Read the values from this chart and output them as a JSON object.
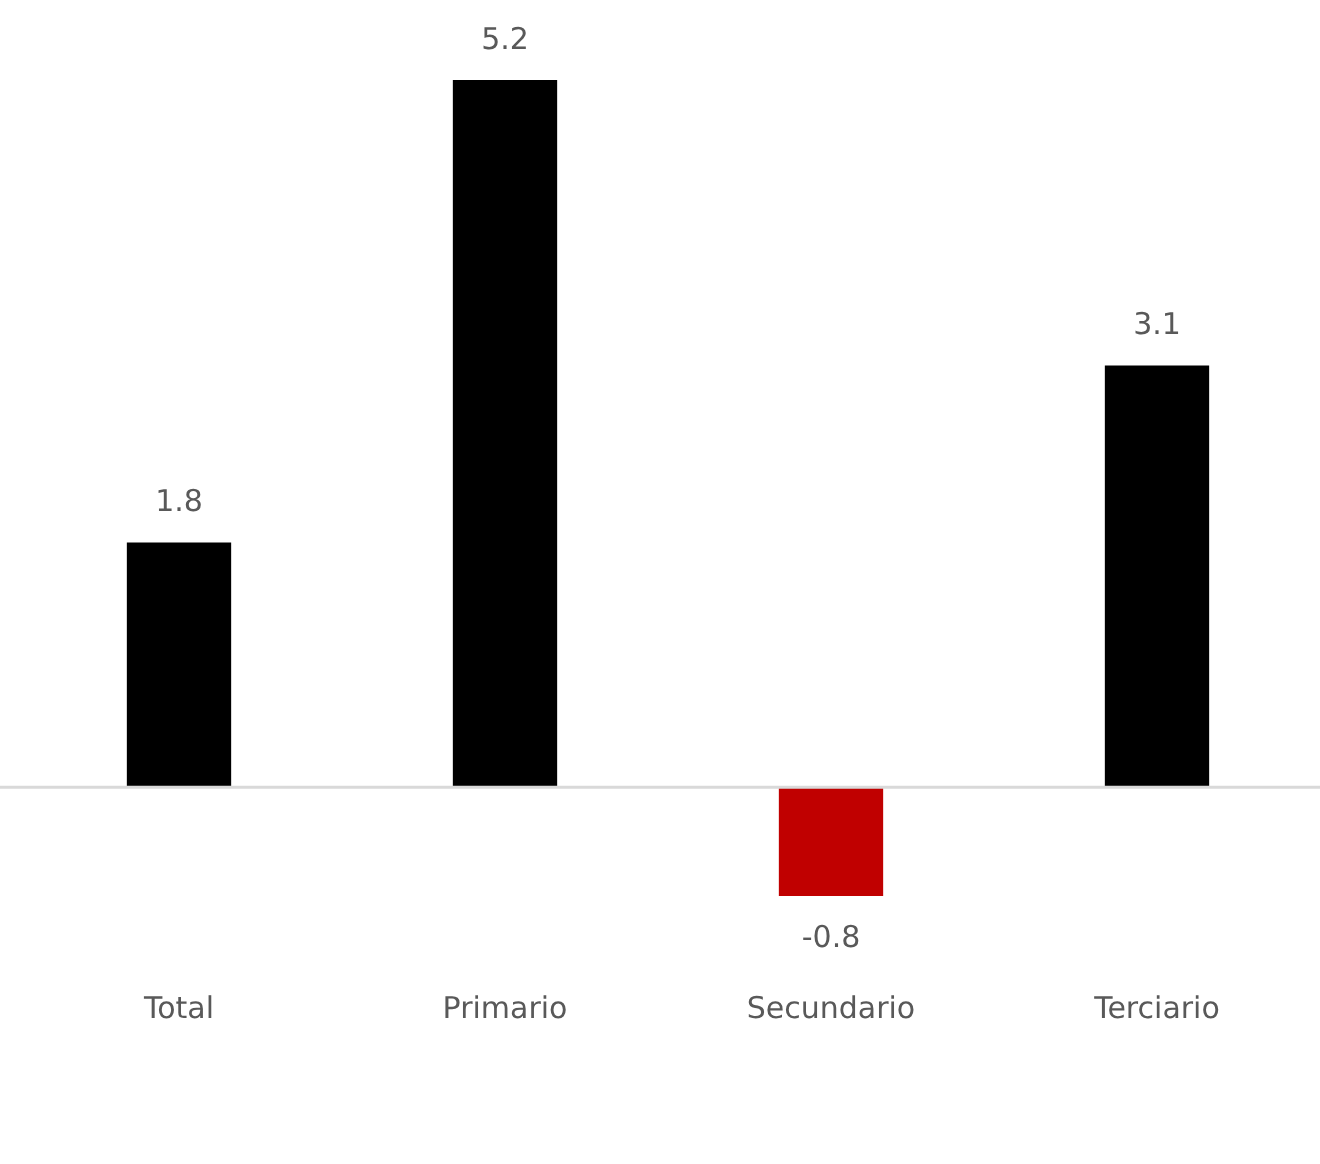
{
  "chart_data": {
    "type": "bar",
    "categories": [
      "Total",
      "Primario",
      "Secundario",
      "Terciario"
    ],
    "values": [
      1.8,
      5.2,
      -0.8,
      3.1
    ],
    "colors": [
      "#000000",
      "#000000",
      "#c00000",
      "#000000"
    ],
    "data_labels": true,
    "grid": false,
    "legend": false
  }
}
